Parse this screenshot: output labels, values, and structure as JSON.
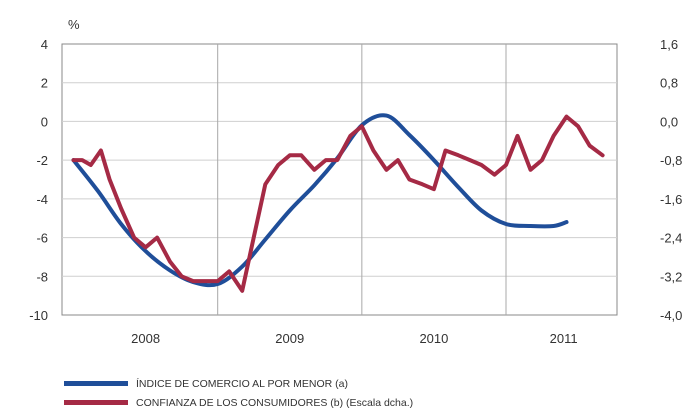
{
  "chart_data": {
    "type": "line",
    "unit_label": "%",
    "x_range": [
      2007.92,
      2011.77
    ],
    "left_axis": {
      "ylim": [
        -10,
        4
      ],
      "ticks": [
        4,
        2,
        0,
        -2,
        -4,
        -6,
        -8,
        -10
      ],
      "tick_labels": [
        "4",
        "2",
        "0",
        "-2",
        "-4",
        "-6",
        "-8",
        "-10"
      ]
    },
    "right_axis": {
      "ylim": [
        -4.0,
        1.6
      ],
      "ticks": [
        1.6,
        0.8,
        0.0,
        -0.8,
        -1.6,
        -2.4,
        -3.2,
        -4.0
      ],
      "tick_labels": [
        "1,6",
        "0,8",
        "0,0",
        "-0,8",
        "-1,6",
        "-2,4",
        "-3,2",
        "-4,0"
      ]
    },
    "year_labels": [
      {
        "label": "2008",
        "x": 2008.5
      },
      {
        "label": "2009",
        "x": 2009.5
      },
      {
        "label": "2010",
        "x": 2010.5
      },
      {
        "label": "2011",
        "x": 2011.4
      }
    ],
    "vertical_grid_x": [
      2009.0,
      2010.0,
      2011.0
    ],
    "series": [
      {
        "name": "ÍNDICE DE COMERCIO AL POR MENOR (a)",
        "axis": "left",
        "color": "#1f4e99",
        "x": [
          2008.0,
          2008.17,
          2008.33,
          2008.5,
          2008.67,
          2008.83,
          2009.0,
          2009.17,
          2009.33,
          2009.5,
          2009.67,
          2009.83,
          2010.0,
          2010.17,
          2010.33,
          2010.5,
          2010.67,
          2010.83,
          2011.0,
          2011.17,
          2011.33,
          2011.42
        ],
        "y": [
          -2.0,
          -3.6,
          -5.3,
          -6.7,
          -7.7,
          -8.3,
          -8.4,
          -7.5,
          -6.1,
          -4.6,
          -3.3,
          -1.9,
          -0.2,
          0.3,
          -0.7,
          -2.0,
          -3.4,
          -4.6,
          -5.3,
          -5.4,
          -5.4,
          -5.2
        ]
      },
      {
        "name": "CONFIANZA DE LOS CONSUMIDORES (b) (Escala dcha.)",
        "axis": "right",
        "color": "#a52a45",
        "x": [
          2008.0,
          2008.06,
          2008.12,
          2008.19,
          2008.25,
          2008.33,
          2008.42,
          2008.5,
          2008.58,
          2008.67,
          2008.75,
          2008.83,
          2008.92,
          2009.0,
          2009.08,
          2009.17,
          2009.25,
          2009.33,
          2009.42,
          2009.5,
          2009.58,
          2009.67,
          2009.75,
          2009.83,
          2009.92,
          2010.0,
          2010.08,
          2010.17,
          2010.25,
          2010.33,
          2010.42,
          2010.5,
          2010.58,
          2010.67,
          2010.75,
          2010.83,
          2010.92,
          2011.0,
          2011.08,
          2011.17,
          2011.25,
          2011.33,
          2011.42,
          2011.5,
          2011.58,
          2011.67
        ],
        "y": [
          -0.8,
          -0.8,
          -0.9,
          -0.6,
          -1.2,
          -1.8,
          -2.4,
          -2.6,
          -2.4,
          -2.9,
          -3.2,
          -3.3,
          -3.3,
          -3.3,
          -3.1,
          -3.5,
          -2.4,
          -1.3,
          -0.9,
          -0.7,
          -0.7,
          -1.0,
          -0.8,
          -0.8,
          -0.3,
          -0.1,
          -0.6,
          -1.0,
          -0.8,
          -1.2,
          -1.3,
          -1.4,
          -0.6,
          -0.7,
          -0.8,
          -0.9,
          -1.1,
          -0.9,
          -0.3,
          -1.0,
          -0.8,
          -0.3,
          0.1,
          -0.1,
          -0.5,
          -0.7
        ]
      }
    ]
  }
}
